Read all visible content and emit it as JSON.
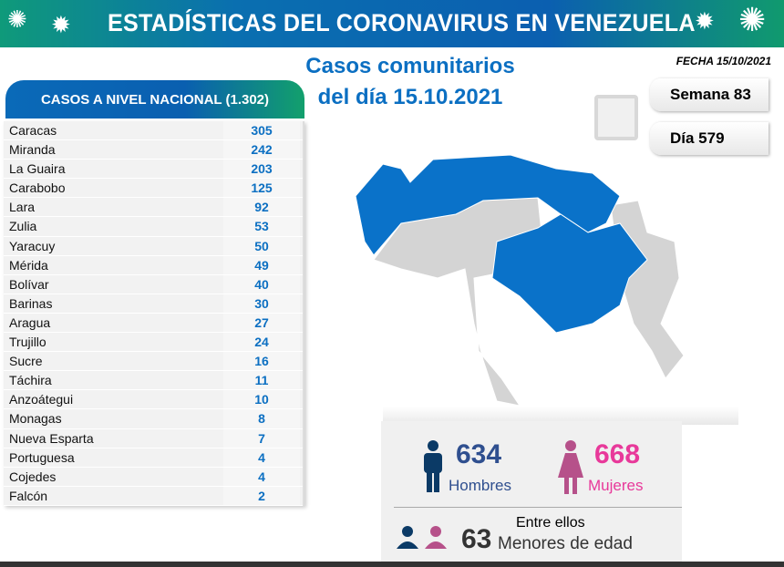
{
  "header": {
    "title": "ESTADÍSTICAS DEL CORONAVIRUS EN VENEZUELA",
    "fecha": "FECHA 15/10/2021"
  },
  "subtitle": {
    "line1": "Casos comunitarios",
    "line2": "del día 15.10.2021"
  },
  "week": {
    "semana": "Semana 83",
    "dia": "Día 579"
  },
  "table": {
    "title": "CASOS A NIVEL NACIONAL (1.302)",
    "rows": [
      {
        "name": "Caracas",
        "value": "305"
      },
      {
        "name": "Miranda",
        "value": "242"
      },
      {
        "name": "La Guaira",
        "value": "203"
      },
      {
        "name": "Carabobo",
        "value": "125"
      },
      {
        "name": "Lara",
        "value": "92"
      },
      {
        "name": "Zulia",
        "value": "53"
      },
      {
        "name": "Yaracuy",
        "value": "50"
      },
      {
        "name": "Mérida",
        "value": "49"
      },
      {
        "name": "Bolívar",
        "value": "40"
      },
      {
        "name": "Barinas",
        "value": "30"
      },
      {
        "name": "Aragua",
        "value": "27"
      },
      {
        "name": "Trujillo",
        "value": "24"
      },
      {
        "name": "Sucre",
        "value": "16"
      },
      {
        "name": "Táchira",
        "value": "11"
      },
      {
        "name": "Anzoátegui",
        "value": "10"
      },
      {
        "name": "Monagas",
        "value": "8"
      },
      {
        "name": "Nueva Esparta",
        "value": "7"
      },
      {
        "name": "Portuguesa",
        "value": "4"
      },
      {
        "name": "Cojedes",
        "value": "4"
      },
      {
        "name": "Falcón",
        "value": "2"
      }
    ]
  },
  "gender": {
    "men_count": "634",
    "men_label": "Hombres",
    "women_count": "668",
    "women_label": "Mujeres",
    "minors_intro": "Entre ellos",
    "minors_count": "63",
    "minors_label": "Menores de edad"
  },
  "colors": {
    "blue": "#0b6fc2",
    "pink": "#e8399a",
    "navy": "#0b3a66"
  }
}
